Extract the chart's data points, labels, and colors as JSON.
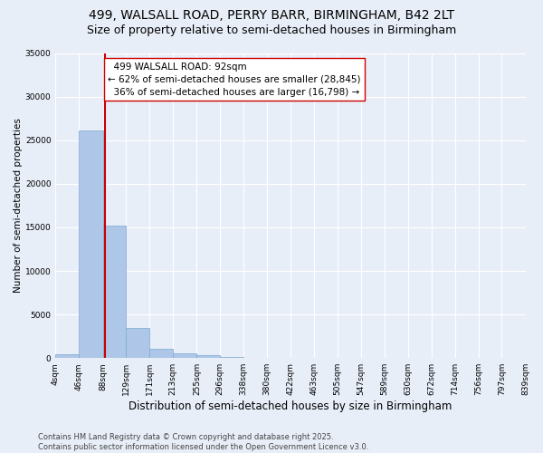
{
  "title": "499, WALSALL ROAD, PERRY BARR, BIRMINGHAM, B42 2LT",
  "subtitle": "Size of property relative to semi-detached houses in Birmingham",
  "xlabel": "Distribution of semi-detached houses by size in Birmingham",
  "ylabel": "Number of semi-detached properties",
  "property_size": 92,
  "property_label": "499 WALSALL ROAD: 92sqm",
  "pct_smaller": 62,
  "n_smaller": 28845,
  "pct_larger": 36,
  "n_larger": 16798,
  "bin_edges": [
    4,
    46,
    88,
    129,
    171,
    213,
    255,
    296,
    338,
    380,
    422,
    463,
    505,
    547,
    589,
    630,
    672,
    714,
    756,
    797,
    839
  ],
  "bin_labels": [
    "4sqm",
    "46sqm",
    "88sqm",
    "129sqm",
    "171sqm",
    "213sqm",
    "255sqm",
    "296sqm",
    "338sqm",
    "380sqm",
    "422sqm",
    "463sqm",
    "505sqm",
    "547sqm",
    "589sqm",
    "630sqm",
    "672sqm",
    "714sqm",
    "756sqm",
    "797sqm",
    "839sqm"
  ],
  "bar_heights": [
    400,
    26100,
    15200,
    3400,
    1100,
    550,
    350,
    100,
    30,
    10,
    5,
    3,
    1,
    1,
    0,
    0,
    0,
    0,
    0,
    0
  ],
  "bar_color": "#aec6e8",
  "bar_edge_color": "#7aaad0",
  "vline_color": "#cc0000",
  "vline_x": 92,
  "annotation_box_color": "#ffffff",
  "annotation_box_edge": "#cc0000",
  "background_color": "#e8eef8",
  "ylim": [
    0,
    35000
  ],
  "yticks": [
    0,
    5000,
    10000,
    15000,
    20000,
    25000,
    30000,
    35000
  ],
  "footnote": "Contains HM Land Registry data © Crown copyright and database right 2025.\nContains public sector information licensed under the Open Government Licence v3.0.",
  "title_fontsize": 10,
  "subtitle_fontsize": 9,
  "xlabel_fontsize": 8.5,
  "ylabel_fontsize": 7.5,
  "tick_fontsize": 6.5,
  "annotation_fontsize": 7.5,
  "footnote_fontsize": 6
}
